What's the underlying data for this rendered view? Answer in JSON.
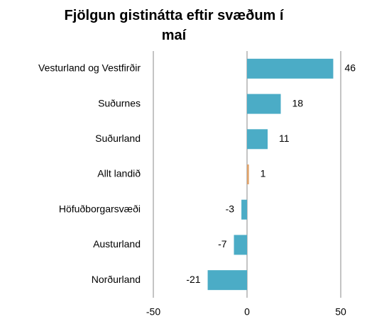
{
  "chart_data": {
    "type": "bar",
    "orientation": "horizontal",
    "title": "Fjölgun gistinátta eftir svæðum í maí",
    "categories": [
      "Vesturland og Vestfirðir",
      "Suðurnes",
      "Suðurland",
      "Allt landið",
      "Höfuðborgarsvæði",
      "Austurland",
      "Norðurland"
    ],
    "values": [
      46,
      18,
      11,
      1,
      -3,
      -7,
      -21
    ],
    "colors": [
      "#4bacc6",
      "#4bacc6",
      "#4bacc6",
      "#e0a26a",
      "#4bacc6",
      "#4bacc6",
      "#4bacc6"
    ],
    "xlim": [
      -50,
      50
    ],
    "xticks": [
      -50,
      0,
      50
    ],
    "grid": true
  }
}
